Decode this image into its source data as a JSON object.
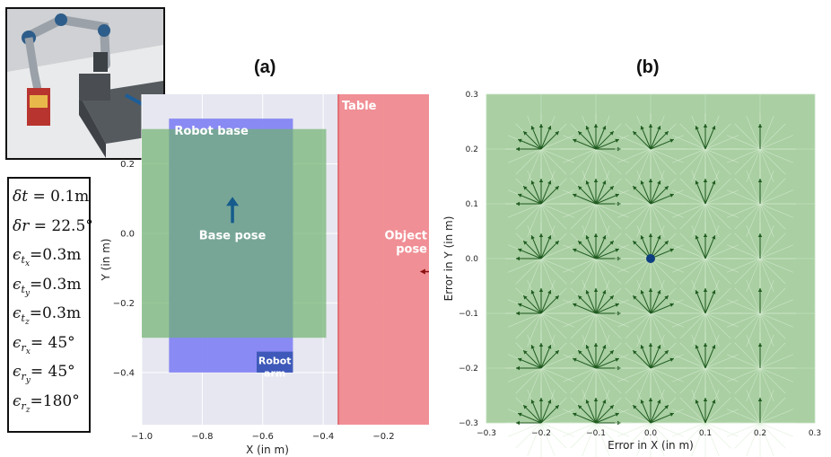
{
  "photo": {
    "alt": "UR robot arm holding a cereal box above a table with a blue arrow"
  },
  "params": [
    {
      "sym": "δt",
      "sub": "",
      "subsub": "",
      "val": " = 0.1m"
    },
    {
      "sym": "δr",
      "sub": "",
      "subsub": "",
      "val": " = 22.5°"
    },
    {
      "sym": "ϵ",
      "sub": "t",
      "subsub": "x",
      "val": "=0.3m"
    },
    {
      "sym": "ϵ",
      "sub": "t",
      "subsub": "y",
      "val": "=0.3m"
    },
    {
      "sym": "ϵ",
      "sub": "t",
      "subsub": "z",
      "val": "=0.3m"
    },
    {
      "sym": "ϵ",
      "sub": "r",
      "subsub": "x",
      "val": "= 45°"
    },
    {
      "sym": "ϵ",
      "sub": "r",
      "subsub": "y",
      "val": "= 45°"
    },
    {
      "sym": "ϵ",
      "sub": "r",
      "subsub": "z",
      "val": "=180°"
    }
  ],
  "chart_data": [
    {
      "id": "a",
      "panel_label": "(a)",
      "type": "area",
      "xlabel": "X (in m)",
      "ylabel": "Y (in m)",
      "xlim": [
        -1.0,
        -0.05
      ],
      "ylim": [
        -0.55,
        0.4
      ],
      "xticks": [
        -1.0,
        -0.8,
        -0.6,
        -0.4,
        -0.2
      ],
      "xtick_labels": [
        "−1.0",
        "−0.8",
        "−0.6",
        "−0.4",
        "−0.2"
      ],
      "yticks": [
        0.2,
        0.0,
        -0.2,
        -0.4
      ],
      "ytick_labels": [
        "0.2",
        "0.0",
        "−0.2",
        "−0.4"
      ],
      "regions": [
        {
          "name": "Table",
          "label": "Table",
          "x": [
            -0.35,
            -0.05
          ],
          "y": [
            -0.55,
            0.4
          ],
          "color": "#f08a8f"
        },
        {
          "name": "Robot base",
          "label": "Robot base",
          "x": [
            -0.91,
            -0.5
          ],
          "y": [
            -0.4,
            0.33
          ],
          "color": "#8585f3"
        },
        {
          "name": "Green workspace",
          "label": "",
          "x": [
            -1.0,
            -0.39
          ],
          "y": [
            -0.3,
            0.3
          ],
          "color": "#6fb26f"
        },
        {
          "name": "Robot arm",
          "label": "Robot\narm",
          "x": [
            -0.62,
            -0.5
          ],
          "y": [
            -0.4,
            -0.34
          ],
          "color": "#3a56b5"
        }
      ],
      "annotations": [
        {
          "name": "base-pose",
          "text": "Base pose",
          "x": -0.7,
          "y": 0.03,
          "dx": 0,
          "dy": 0.07,
          "color": "#155b8c"
        },
        {
          "name": "object-pose",
          "text": "Object\npose",
          "x": -0.05,
          "y": -0.11,
          "dx": -0.03,
          "dy": 0,
          "color": "#8b1010"
        }
      ],
      "grid": true
    },
    {
      "id": "b",
      "panel_label": "(b)",
      "type": "quiver",
      "xlabel": "Error in X (in m)",
      "ylabel": "Error in Y (in m)",
      "xlim": [
        -0.3,
        0.3
      ],
      "ylim": [
        -0.3,
        0.3
      ],
      "xticks": [
        -0.3,
        -0.2,
        -0.1,
        0.0,
        0.1,
        0.2,
        0.3
      ],
      "xtick_labels": [
        "−0.3",
        "−0.2",
        "−0.1",
        "0.0",
        "0.1",
        "0.2",
        "0.3"
      ],
      "yticks": [
        0.3,
        0.2,
        0.1,
        0.0,
        -0.1,
        -0.2,
        -0.3
      ],
      "ytick_labels": [
        "0.3",
        "0.2",
        "0.1",
        "0.0",
        "−0.1",
        "−0.2",
        "−0.3"
      ],
      "grid_x": [
        -0.2,
        -0.1,
        0.0,
        0.1,
        0.2
      ],
      "grid_y": [
        0.2,
        0.1,
        0.0,
        -0.1,
        -0.2,
        -0.3
      ],
      "arrow_angles_deg": {
        "-0.2": [
          90,
          67.5,
          45,
          112.5,
          135,
          157.5,
          180
        ],
        "-0.1": [
          90,
          67.5,
          45,
          22.5,
          0,
          112.5,
          135,
          157.5
        ],
        "0.0": [
          90,
          67.5,
          45,
          22.5,
          112.5,
          135
        ],
        "0.1": [
          90,
          67.5,
          112.5
        ],
        "0.2": [
          90
        ]
      },
      "marker": {
        "x": 0.0,
        "y": 0.0,
        "color": "#0d3f80"
      },
      "background": "#a9cfa3"
    }
  ]
}
